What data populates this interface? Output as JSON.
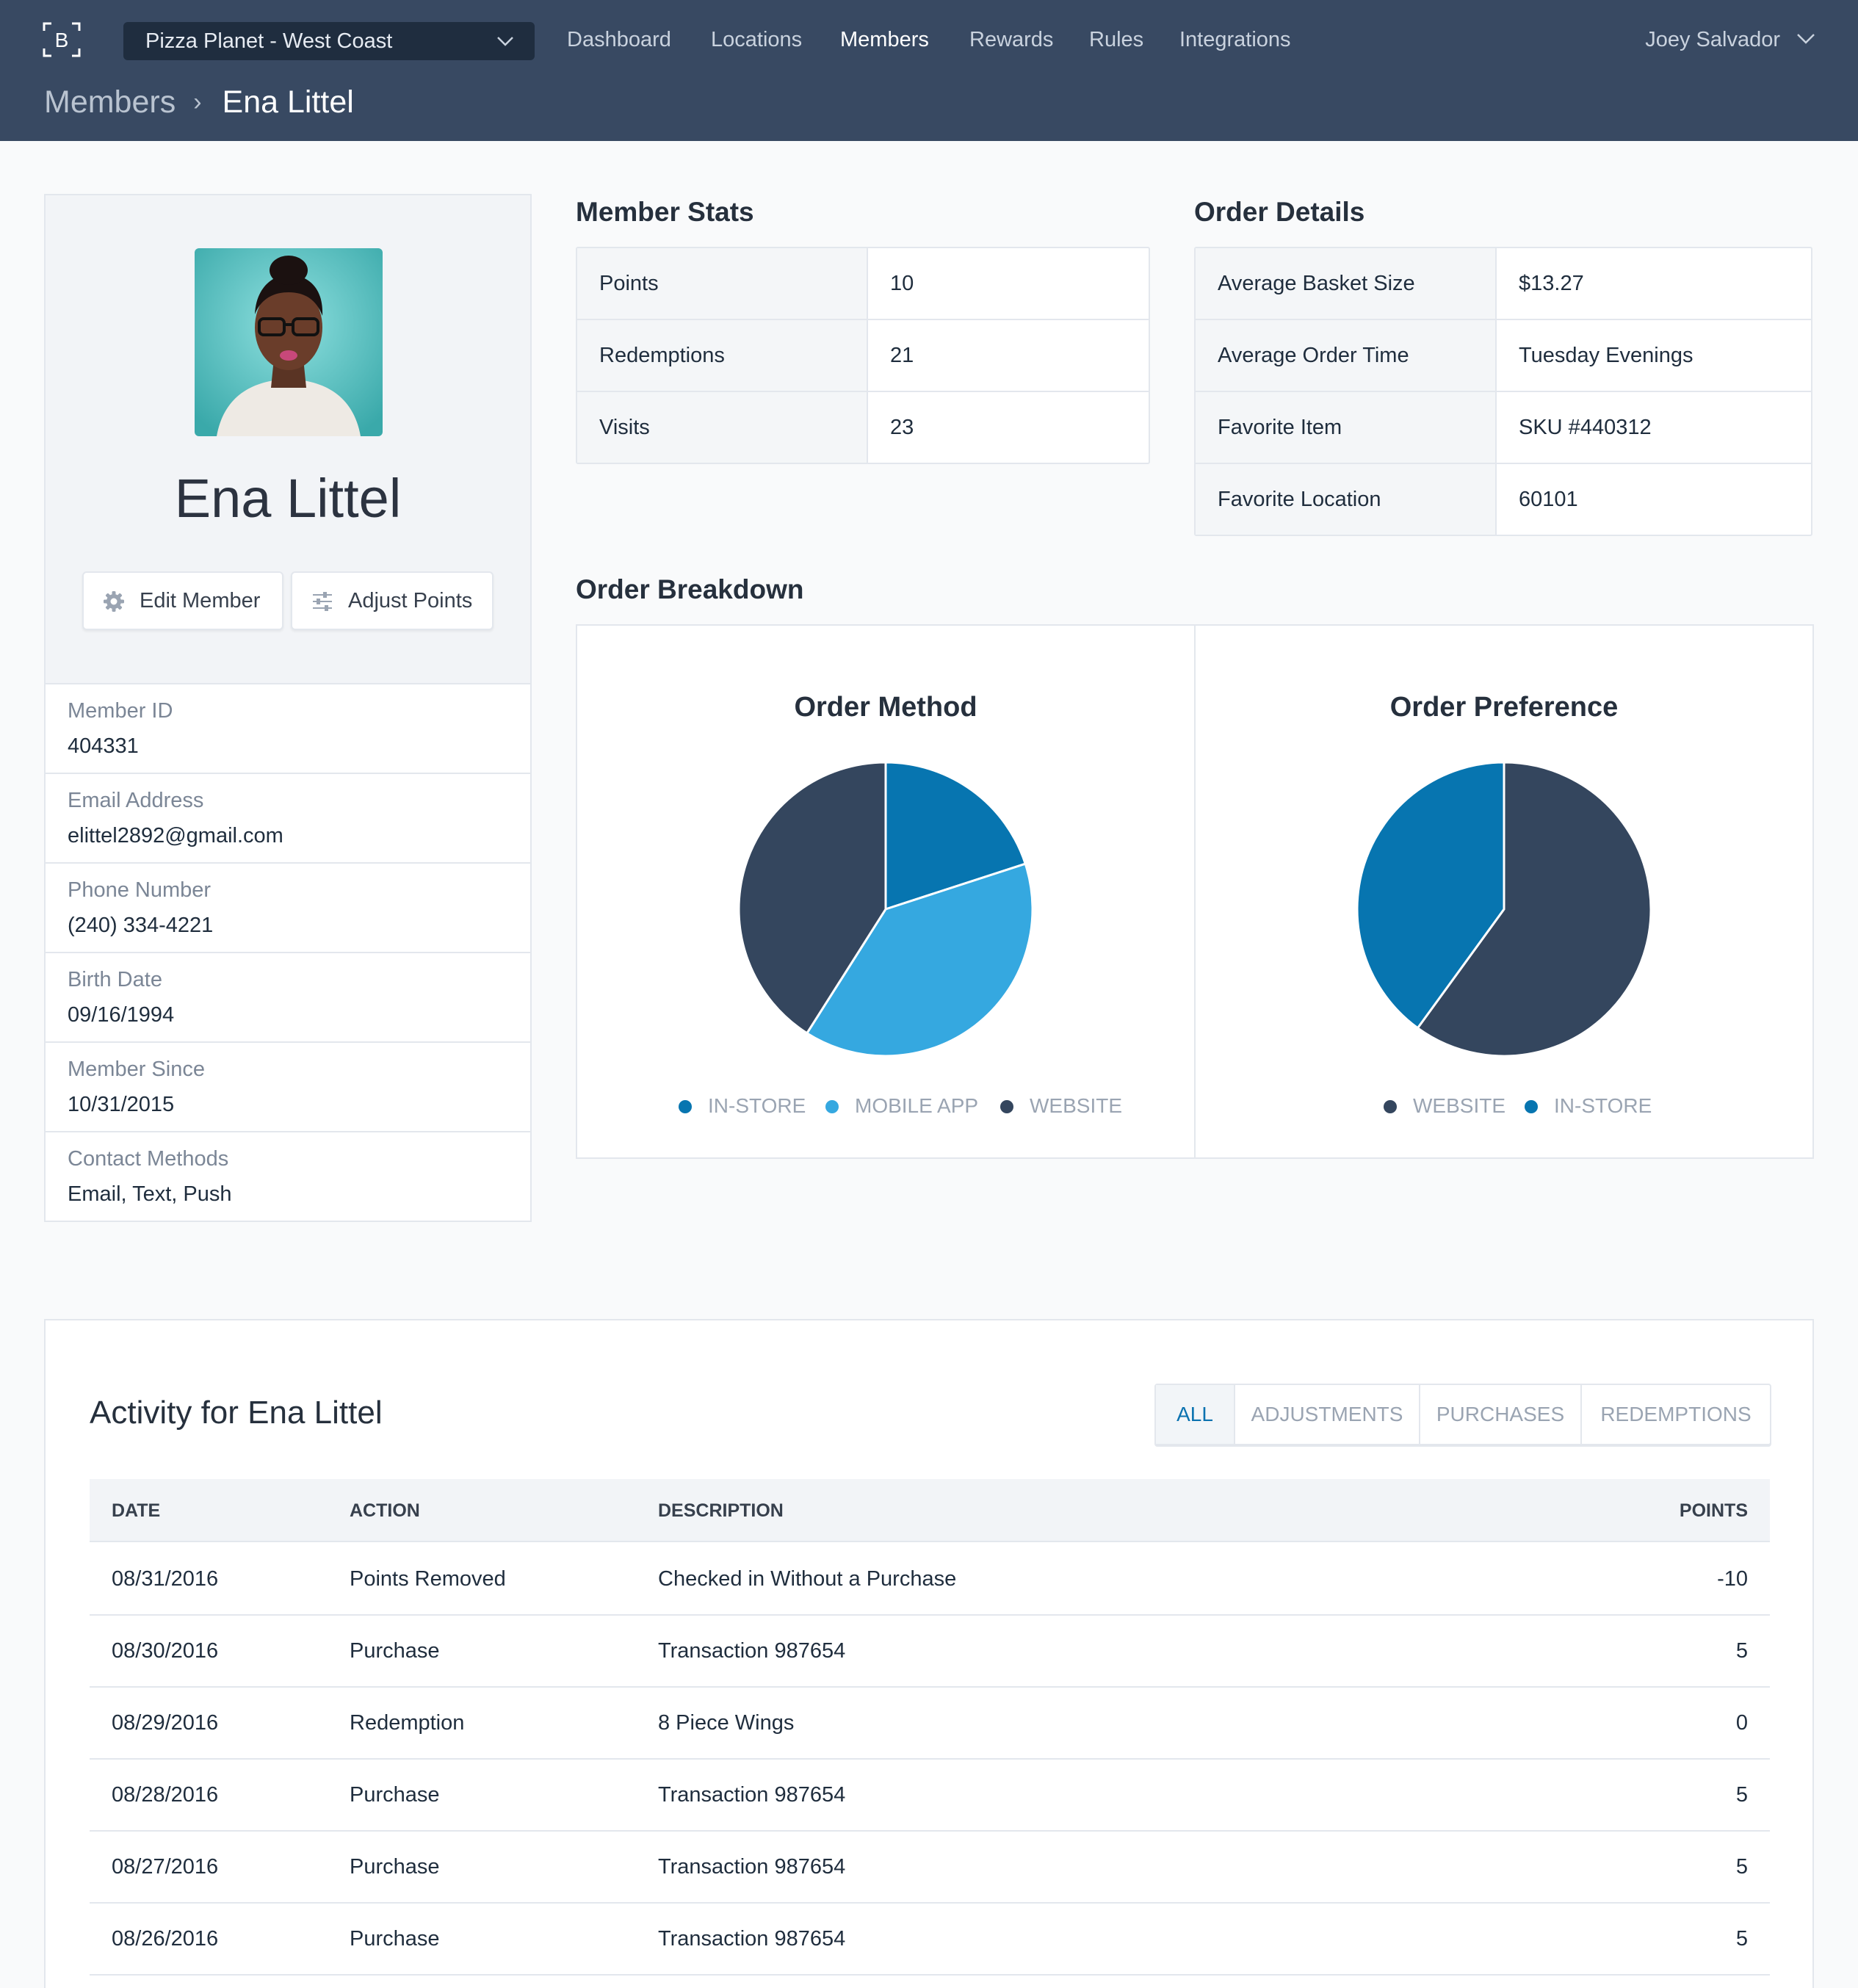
{
  "header": {
    "location_select": "Pizza Planet - West Coast",
    "nav": [
      "Dashboard",
      "Locations",
      "Members",
      "Rewards",
      "Rules",
      "Integrations"
    ],
    "active_nav": "Members",
    "user_name": "Joey Salvador",
    "logo_letter": "B"
  },
  "breadcrumb": {
    "root": "Members",
    "separator": "›",
    "current": "Ena Littel"
  },
  "profile": {
    "name": "Ena Littel",
    "edit_button": "Edit Member",
    "adjust_button": "Adjust Points",
    "fields": [
      {
        "label": "Member ID",
        "value": "404331"
      },
      {
        "label": "Email Address",
        "value": "elittel2892@gmail.com"
      },
      {
        "label": "Phone Number",
        "value": "(240) 334-4221"
      },
      {
        "label": "Birth Date",
        "value": "09/16/1994"
      },
      {
        "label": "Member Since",
        "value": "10/31/2015"
      },
      {
        "label": "Contact Methods",
        "value": "Email, Text, Push"
      }
    ]
  },
  "member_stats": {
    "title": "Member Stats",
    "rows": [
      {
        "key": "Points",
        "value": "10"
      },
      {
        "key": "Redemptions",
        "value": "21"
      },
      {
        "key": "Visits",
        "value": "23"
      }
    ]
  },
  "order_details": {
    "title": "Order Details",
    "rows": [
      {
        "key": "Average Basket Size",
        "value": "$13.27"
      },
      {
        "key": "Average Order Time",
        "value": "Tuesday Evenings"
      },
      {
        "key": "Favorite Item",
        "value": "SKU #440312"
      },
      {
        "key": "Favorite Location",
        "value": "60101"
      }
    ]
  },
  "order_breakdown": {
    "title": "Order Breakdown"
  },
  "chart_data": [
    {
      "type": "pie",
      "title": "Order Method",
      "slices": [
        {
          "label": "IN-STORE",
          "value": 20,
          "color": "#0775b0"
        },
        {
          "label": "MOBILE APP",
          "value": 39,
          "color": "#35a8e0"
        },
        {
          "label": "WEBSITE",
          "value": 41,
          "color": "#34465e"
        }
      ],
      "legend": "bottom"
    },
    {
      "type": "pie",
      "title": "Order Preference",
      "slices": [
        {
          "label": "WEBSITE",
          "value": 60,
          "color": "#34465e"
        },
        {
          "label": "IN-STORE",
          "value": 40,
          "color": "#0775b0"
        }
      ],
      "legend": "bottom"
    }
  ],
  "activity": {
    "title": "Activity for Ena Littel",
    "tabs": [
      "ALL",
      "ADJUSTMENTS",
      "PURCHASES",
      "REDEMPTIONS"
    ],
    "active_tab": "ALL",
    "columns": [
      "DATE",
      "ACTION",
      "DESCRIPTION",
      "POINTS"
    ],
    "rows": [
      {
        "date": "08/31/2016",
        "action": "Points Removed",
        "description": "Checked in Without a Purchase",
        "points": "-10"
      },
      {
        "date": "08/30/2016",
        "action": "Purchase",
        "description": "Transaction 987654",
        "points": "5"
      },
      {
        "date": "08/29/2016",
        "action": "Redemption",
        "description": "8 Piece Wings",
        "points": "0"
      },
      {
        "date": "08/28/2016",
        "action": "Purchase",
        "description": "Transaction 987654",
        "points": "5"
      },
      {
        "date": "08/27/2016",
        "action": "Purchase",
        "description": "Transaction 987654",
        "points": "5"
      },
      {
        "date": "08/26/2016",
        "action": "Purchase",
        "description": "Transaction 987654",
        "points": "5"
      }
    ]
  }
}
